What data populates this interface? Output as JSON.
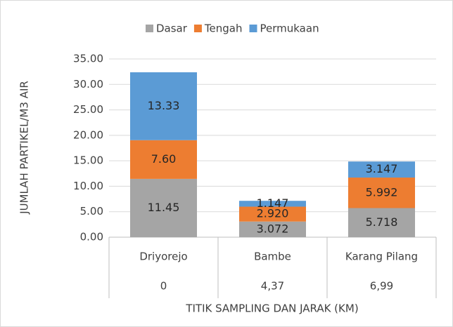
{
  "chart_data": {
    "type": "stacked_bar",
    "categories": [
      "Driyorejo",
      "Bambe",
      "Karang Pilang"
    ],
    "category_sublabels": [
      "0",
      "4,37",
      "6,99"
    ],
    "xlabel": "TITIK SAMPLING DAN JARAK (KM)",
    "ylabel": "JUMLAH PARTIKEL/M3 AIR",
    "series": [
      {
        "name": "Dasar",
        "color": "#a5a5a5",
        "values": [
          11.45,
          3.072,
          5.718
        ],
        "value_labels": [
          "11.45",
          "3.072",
          "5.718"
        ]
      },
      {
        "name": "Tengah",
        "color": "#ed7d31",
        "values": [
          7.6,
          2.92,
          5.992
        ],
        "value_labels": [
          "7.60",
          "2.920",
          "5.992"
        ]
      },
      {
        "name": "Permukaan",
        "color": "#5b9bd5",
        "values": [
          13.33,
          1.147,
          3.147
        ],
        "value_labels": [
          "13.33",
          "1.147",
          "3.147"
        ]
      }
    ],
    "ylim": [
      0,
      35
    ],
    "yticks": [
      {
        "value": 0,
        "label": "0.00"
      },
      {
        "value": 5,
        "label": "5.00"
      },
      {
        "value": 10,
        "label": "10.00"
      },
      {
        "value": 15,
        "label": "15.00"
      },
      {
        "value": 20,
        "label": "20.00"
      },
      {
        "value": 25,
        "label": "25.00"
      },
      {
        "value": 30,
        "label": "30.00"
      },
      {
        "value": 35,
        "label": "35.00"
      }
    ],
    "grid": true,
    "legend": "top"
  }
}
